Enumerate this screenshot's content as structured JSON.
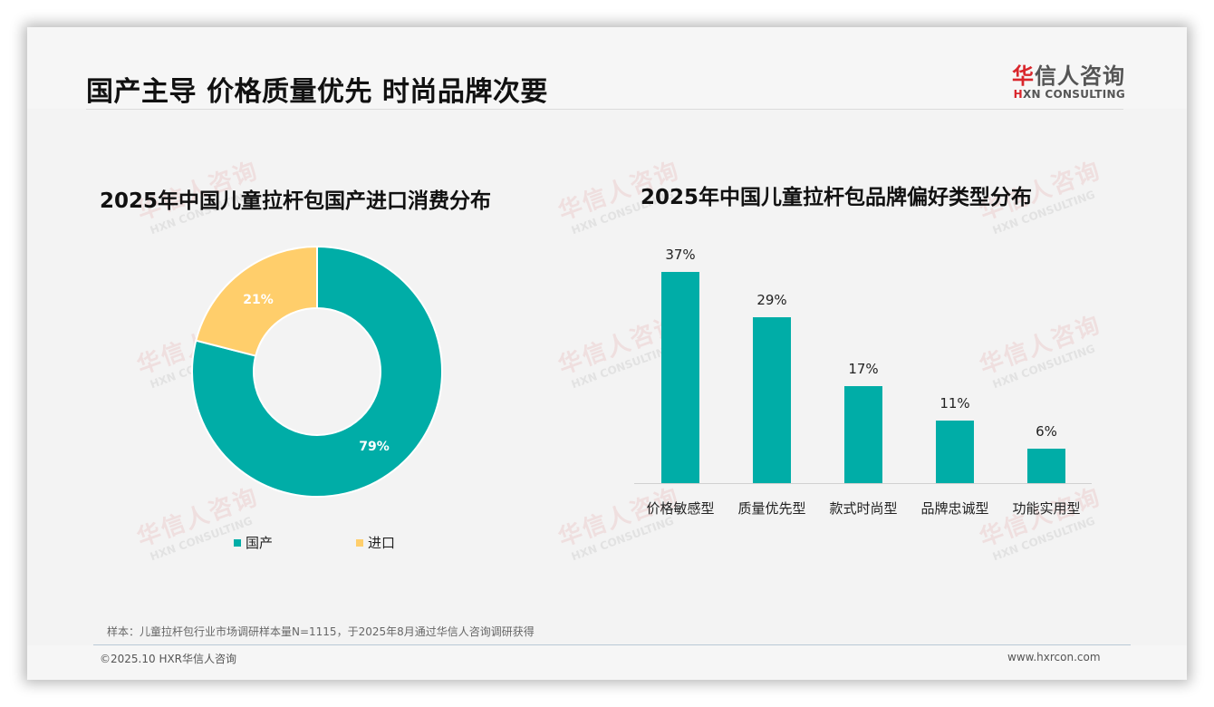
{
  "header": {
    "title": "国产主导 价格质量优先 时尚品牌次要",
    "logo": {
      "cn_accent": "华",
      "cn_rest": "信人咨询",
      "en_accent": "H",
      "en_rest": "XN CONSULTING"
    }
  },
  "watermark": {
    "cn": "华信人咨询",
    "en": "HXN CONSULTING"
  },
  "colors": {
    "teal": "#00ADA7",
    "yellow": "#FFCE6B",
    "title": "#111111"
  },
  "chart_data": [
    {
      "type": "pie",
      "variant": "donut",
      "title": "2025年中国儿童拉杆包国产进口消费分布",
      "categories": [
        "国产",
        "进口"
      ],
      "values": [
        79,
        21
      ],
      "labels": [
        "79%",
        "21%"
      ],
      "colors": [
        "#00ADA7",
        "#FFCE6B"
      ],
      "legend_position": "bottom"
    },
    {
      "type": "bar",
      "title": "2025年中国儿童拉杆包品牌偏好类型分布",
      "categories": [
        "价格敏感型",
        "质量优先型",
        "款式时尚型",
        "品牌忠诚型",
        "功能实用型"
      ],
      "values": [
        37,
        29,
        17,
        11,
        6
      ],
      "labels": [
        "37%",
        "29%",
        "17%",
        "11%",
        "6%"
      ],
      "color": "#00ADA7",
      "xlabel": "",
      "ylabel": "",
      "ylim": [
        0,
        40
      ],
      "grid": false,
      "legend": false
    }
  ],
  "footer": {
    "note": "样本：儿童拉杆包行业市场调研样本量N=1115，于2025年8月通过华信人咨询调研获得",
    "copyright": "©2025.10 HXR华信人咨询",
    "site": "www.hxrcon.com"
  }
}
